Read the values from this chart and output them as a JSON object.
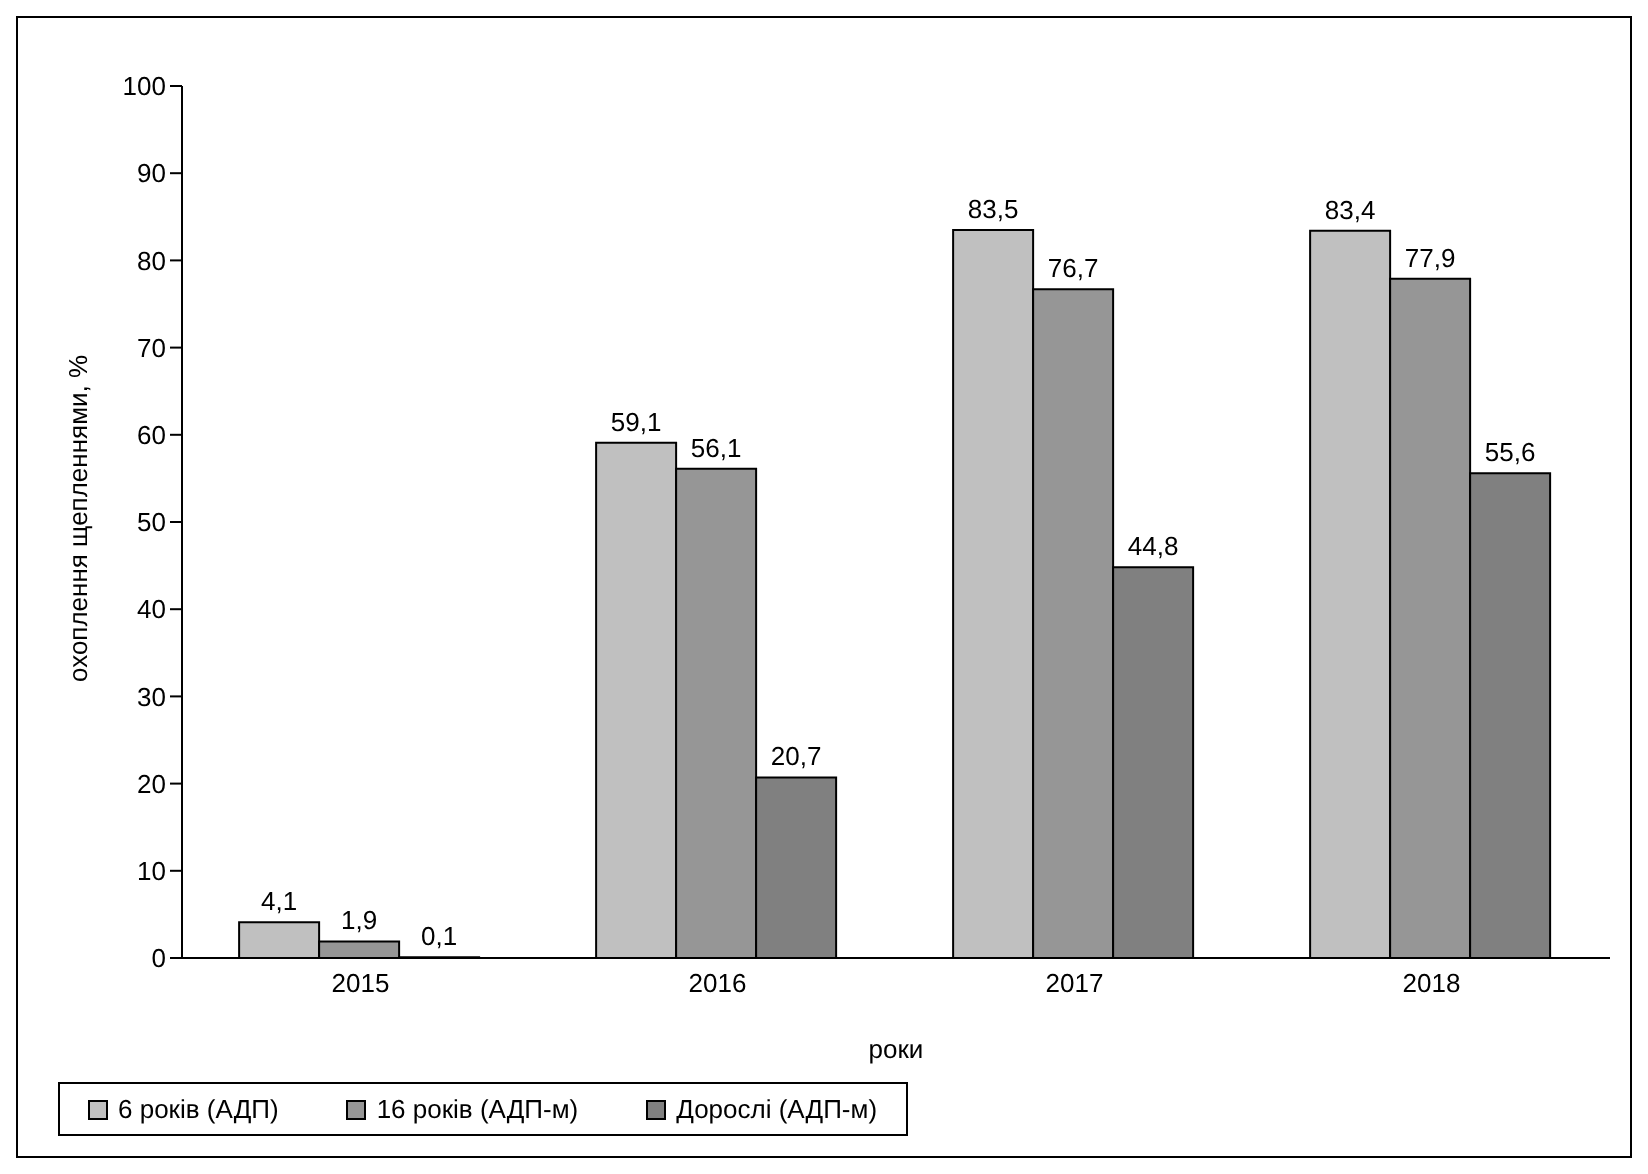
{
  "chart_data": {
    "type": "bar",
    "xlabel": "роки",
    "ylabel": "охоплення щепленнями, %",
    "categories": [
      "2015",
      "2016",
      "2017",
      "2018"
    ],
    "series": [
      {
        "name": "6 років (АДП)",
        "color": "#c0c0c0",
        "values": [
          4.1,
          59.1,
          83.5,
          83.4
        ],
        "value_labels": [
          "4,1",
          "59,1",
          "83,5",
          "83,4"
        ]
      },
      {
        "name": "16 років (АДП-м)",
        "color": "#969696",
        "values": [
          1.9,
          56.1,
          76.7,
          77.9
        ],
        "value_labels": [
          "1,9",
          "56,1",
          "76,7",
          "77,9"
        ]
      },
      {
        "name": "Дорослі (АДП-м)",
        "color": "#808080",
        "values": [
          0.1,
          20.7,
          44.8,
          55.6
        ],
        "value_labels": [
          "0,1",
          "20,7",
          "44,8",
          "55,6"
        ]
      }
    ],
    "ylim": [
      0,
      100
    ],
    "yticks": [
      0,
      10,
      20,
      30,
      40,
      50,
      60,
      70,
      80,
      90,
      100
    ],
    "grid": false,
    "legend": "bottom"
  }
}
